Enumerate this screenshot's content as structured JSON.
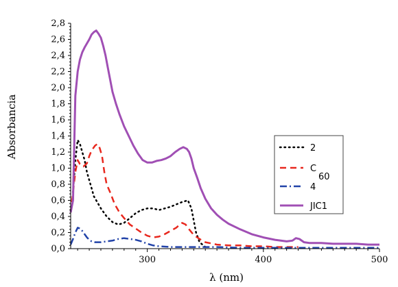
{
  "chart_data": {
    "type": "line",
    "title": "",
    "xlabel": "λ (nm)",
    "ylabel": "Absorbancia",
    "xlim": [
      234,
      500
    ],
    "ylim": [
      0,
      2.8
    ],
    "x_ticks": [
      300,
      400,
      500
    ],
    "y_ticks": [
      "0,0",
      "0,2",
      "0,4",
      "0,6",
      "0,8",
      "1,0",
      "1,2",
      "1,4",
      "1,6",
      "1,8",
      "2,0",
      "2,2",
      "2,4",
      "2,6",
      "2,8"
    ],
    "y_tick_values": [
      0,
      0.2,
      0.4,
      0.6,
      0.8,
      1.0,
      1.2,
      1.4,
      1.6,
      1.8,
      2.0,
      2.2,
      2.4,
      2.6,
      2.8
    ],
    "legend_position": "right",
    "grid": false,
    "series": [
      {
        "name": "2",
        "color": "#000000",
        "style": "dotted",
        "x": [
          236,
          238,
          240,
          242,
          244,
          246,
          248,
          250,
          252,
          254,
          256,
          258,
          260,
          265,
          270,
          275,
          280,
          285,
          290,
          295,
          300,
          305,
          310,
          315,
          320,
          325,
          330,
          335,
          338,
          340,
          342,
          345,
          350
        ],
        "y": [
          0.7,
          1.1,
          1.35,
          1.3,
          1.2,
          1.1,
          0.95,
          0.85,
          0.75,
          0.65,
          0.6,
          0.55,
          0.5,
          0.4,
          0.33,
          0.3,
          0.32,
          0.38,
          0.44,
          0.48,
          0.5,
          0.5,
          0.48,
          0.5,
          0.52,
          0.55,
          0.58,
          0.6,
          0.5,
          0.35,
          0.2,
          0.08,
          0.02
        ]
      },
      {
        "name": "C60",
        "color": "#e8281e",
        "style": "dashed",
        "x": [
          234,
          236,
          238,
          240,
          242,
          245,
          248,
          250,
          252,
          255,
          257,
          259,
          261,
          263,
          265,
          268,
          272,
          276,
          280,
          285,
          290,
          295,
          300,
          305,
          310,
          315,
          320,
          325,
          328,
          330,
          333,
          336,
          340,
          345,
          350,
          360,
          370,
          380,
          390,
          400,
          410,
          420,
          430
        ],
        "y": [
          0.45,
          0.7,
          0.95,
          1.1,
          1.05,
          1.02,
          1.06,
          1.15,
          1.22,
          1.28,
          1.3,
          1.25,
          1.15,
          0.95,
          0.8,
          0.7,
          0.55,
          0.45,
          0.38,
          0.3,
          0.25,
          0.2,
          0.16,
          0.14,
          0.15,
          0.18,
          0.22,
          0.26,
          0.3,
          0.32,
          0.3,
          0.24,
          0.17,
          0.12,
          0.08,
          0.05,
          0.04,
          0.04,
          0.03,
          0.03,
          0.02,
          0.02,
          0.02
        ]
      },
      {
        "name": "4",
        "color": "#2142a8",
        "style": "dashdot",
        "x": [
          234,
          236,
          238,
          240,
          242,
          244,
          246,
          248,
          250,
          252,
          255,
          260,
          265,
          270,
          275,
          280,
          285,
          290,
          295,
          300,
          305,
          310,
          320,
          340,
          360,
          380,
          400,
          450,
          500
        ],
        "y": [
          0.05,
          0.12,
          0.2,
          0.26,
          0.25,
          0.22,
          0.18,
          0.14,
          0.11,
          0.09,
          0.08,
          0.08,
          0.09,
          0.1,
          0.12,
          0.13,
          0.12,
          0.11,
          0.09,
          0.06,
          0.04,
          0.03,
          0.02,
          0.02,
          0.02,
          0.01,
          0.01,
          0.01,
          0.01
        ]
      },
      {
        "name": "JIC1",
        "color": "#a04fb4",
        "style": "solid",
        "x": [
          234,
          236,
          238,
          240,
          242,
          244,
          246,
          248,
          250,
          252,
          254,
          256,
          258,
          260,
          262,
          264,
          266,
          268,
          270,
          273,
          276,
          280,
          284,
          288,
          292,
          296,
          300,
          304,
          308,
          312,
          316,
          320,
          324,
          328,
          331,
          334,
          336,
          338,
          340,
          343,
          346,
          350,
          355,
          360,
          365,
          370,
          380,
          390,
          400,
          410,
          420,
          425,
          428,
          431,
          435,
          440,
          450,
          460,
          470,
          480,
          490,
          500
        ],
        "y": [
          0.45,
          0.6,
          1.9,
          2.2,
          2.35,
          2.44,
          2.5,
          2.55,
          2.6,
          2.66,
          2.69,
          2.71,
          2.67,
          2.62,
          2.52,
          2.4,
          2.25,
          2.1,
          1.95,
          1.8,
          1.67,
          1.52,
          1.4,
          1.28,
          1.18,
          1.1,
          1.07,
          1.07,
          1.09,
          1.1,
          1.12,
          1.15,
          1.2,
          1.24,
          1.26,
          1.24,
          1.2,
          1.12,
          1.0,
          0.88,
          0.75,
          0.62,
          0.5,
          0.42,
          0.36,
          0.31,
          0.24,
          0.18,
          0.14,
          0.11,
          0.09,
          0.1,
          0.13,
          0.12,
          0.08,
          0.07,
          0.07,
          0.06,
          0.06,
          0.06,
          0.05,
          0.05
        ]
      }
    ],
    "legend": [
      {
        "label": "2",
        "sub": ""
      },
      {
        "label": "C",
        "sub": "60"
      },
      {
        "label": "4",
        "sub": ""
      },
      {
        "label": "JIC1",
        "sub": ""
      }
    ]
  }
}
